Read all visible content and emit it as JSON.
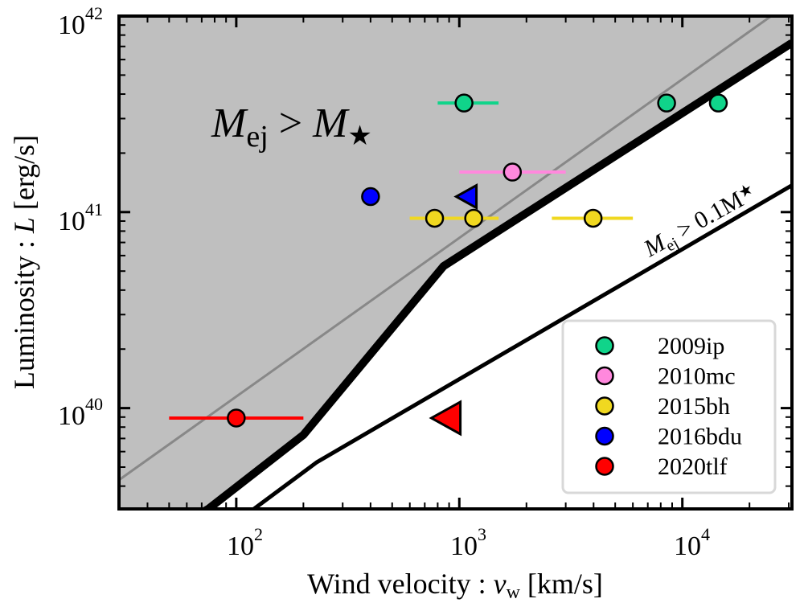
{
  "chart_data": {
    "type": "scatter",
    "xscale": "log",
    "yscale": "log",
    "xlim": [
      29.8,
      31000
    ],
    "ylim": [
      3.06e+39,
      1e+42
    ],
    "xlabel_parts": [
      "Wind velocity : ",
      "v",
      "w",
      " [km/s]"
    ],
    "ylabel_parts": [
      "Luminosity : ",
      "L",
      " [erg/s]"
    ],
    "x_ticks": [
      {
        "base": "10",
        "exp": "2",
        "value": 100
      },
      {
        "base": "10",
        "exp": "3",
        "value": 1000
      },
      {
        "base": "10",
        "exp": "4",
        "value": 10000
      }
    ],
    "y_ticks": [
      {
        "base": "10",
        "exp": "40",
        "value": 1e+40
      },
      {
        "base": "10",
        "exp": "41",
        "value": 1e+41
      },
      {
        "base": "10",
        "exp": "42",
        "value": 1e+42
      }
    ],
    "grid": false,
    "region_label": {
      "main": "M",
      "sub": "ej",
      "op": " > ",
      "rhs": "M",
      "rhs_sub": "★"
    },
    "line_label": {
      "main": "M",
      "sub": "ej",
      "rest": " > 0.1M",
      "star": "★"
    },
    "shaded_region_color": "#bfbfbf",
    "boundary_thick": [
      [
        29.8,
        1.7e+39
      ],
      [
        75,
        3.06e+39
      ],
      [
        200,
        7.3e+39
      ],
      [
        850,
        5.3e+40
      ],
      [
        31000,
        7.3e+41
      ]
    ],
    "boundary_thin": [
      [
        120,
        3.06e+39
      ],
      [
        230,
        5.3e+39
      ],
      [
        31000,
        1.37e+41
      ]
    ],
    "gray_line": [
      [
        29.8,
        4.3e+39
      ],
      [
        25000,
        1e+42
      ]
    ],
    "series": [
      {
        "name": "2009ip",
        "color": "#10d48a",
        "points": [
          {
            "x": 1050,
            "y": 3.6e+41,
            "xerr": [
              800,
              1500
            ]
          },
          {
            "x": 8500,
            "y": 3.6e+41
          },
          {
            "x": 14500,
            "y": 3.6e+41
          }
        ]
      },
      {
        "name": "2010mc",
        "color": "#ff88dd",
        "points": [
          {
            "x": 1730,
            "y": 1.6e+41,
            "xerr": [
              1000,
              3000
            ]
          }
        ]
      },
      {
        "name": "2015bh",
        "color": "#f0d820",
        "points": [
          {
            "x": 775,
            "y": 9.3e+40,
            "xerr": [
              600,
              1500
            ]
          },
          {
            "x": 1160,
            "y": 9.3e+40,
            "xerr": [
              600,
              1500
            ]
          },
          {
            "x": 3980,
            "y": 9.3e+40,
            "xerr": [
              2600,
              6000
            ]
          }
        ]
      },
      {
        "name": "2016bdu",
        "color": "#0000ff",
        "points": [
          {
            "x": 400,
            "y": 1.2e+41
          },
          {
            "x": 1100,
            "y": 1.2e+41,
            "marker": "upper-limit-left"
          }
        ]
      },
      {
        "name": "2020tlf",
        "color": "#ff0000",
        "points": [
          {
            "x": 100,
            "y": 8.9e+39,
            "xerr": [
              50,
              200
            ]
          },
          {
            "x": 900,
            "y": 8.9e+39,
            "marker": "upper-limit-left"
          }
        ]
      }
    ],
    "legend": {
      "position": "lower-right",
      "entries": [
        "2009ip",
        "2010mc",
        "2015bh",
        "2016bdu",
        "2020tlf"
      ]
    }
  }
}
